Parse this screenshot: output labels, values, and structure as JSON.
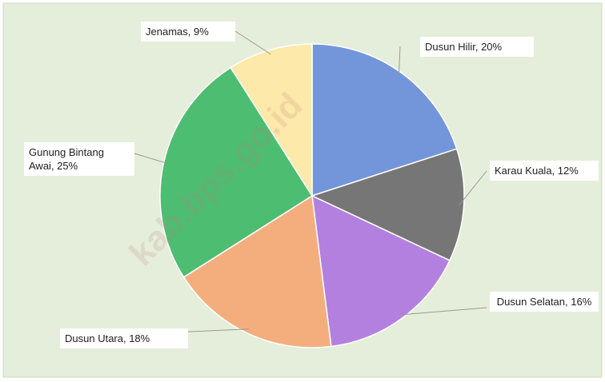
{
  "chart_data": {
    "type": "pie",
    "values": [
      20,
      12,
      16,
      18,
      25,
      9
    ],
    "value_labels": [
      "Dusun Hilir, 20%",
      "Karau Kuala, 12%",
      "Dusun Selatan, 16%",
      "Dusun Utara, 18%",
      "Gunung Bintang Awai, 25%",
      "Jenamas, 9%"
    ],
    "colors": [
      "#7396da",
      "#767676",
      "#b480e0",
      "#f4ae7e",
      "#4dbd72",
      "#fde9aa"
    ],
    "watermark": "kab.bps.go.id"
  }
}
